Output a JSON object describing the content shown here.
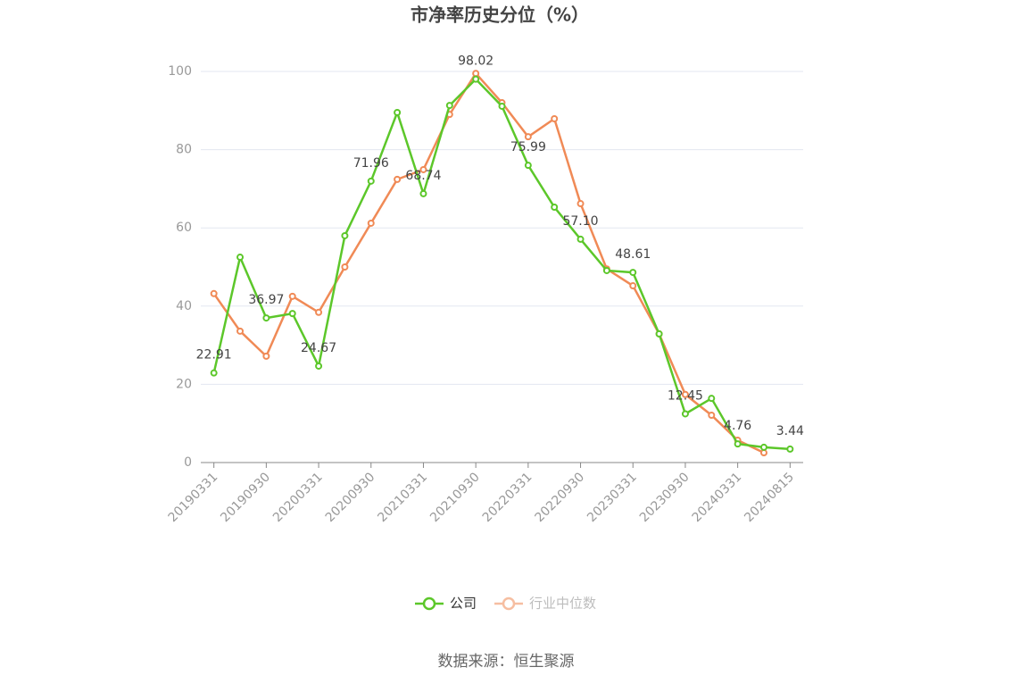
{
  "chart_data": {
    "type": "line",
    "title": "市净率历史分位（%）",
    "categories": [
      "20190331",
      null,
      "20190930",
      null,
      "20200331",
      null,
      "20200930",
      null,
      "20210331",
      null,
      "20210930",
      null,
      "20220331",
      null,
      "20220930",
      null,
      "20230331",
      null,
      "20230930",
      null,
      "20240331",
      null,
      "20240815"
    ],
    "series": [
      {
        "name": "公司",
        "color": "#5cc72a",
        "values": [
          22.91,
          52.5,
          36.97,
          38.1,
          24.67,
          58.0,
          71.96,
          89.5,
          68.74,
          91.3,
          98.02,
          91.1,
          75.99,
          65.3,
          57.1,
          49.1,
          48.61,
          32.9,
          12.45,
          16.4,
          4.76,
          3.9,
          3.44
        ],
        "value_labels": [
          "22.91",
          null,
          "36.97",
          null,
          "24.67",
          null,
          "71.96",
          null,
          "68.74",
          null,
          "98.02",
          null,
          "75.99",
          null,
          "57.10",
          null,
          "48.61",
          null,
          "12.45",
          null,
          "4.76",
          null,
          "3.44"
        ]
      },
      {
        "name": "行业中位数",
        "color": "#f08a56",
        "values": [
          43.2,
          33.6,
          27.2,
          42.5,
          38.4,
          50.0,
          61.2,
          72.4,
          74.9,
          89.0,
          99.5,
          92.0,
          83.3,
          87.9,
          66.2,
          49.5,
          45.2,
          32.9,
          17.4,
          12.1,
          5.7,
          2.5,
          null
        ]
      }
    ],
    "ylim": [
      0,
      100
    ],
    "yticks": [
      0,
      20,
      40,
      60,
      80,
      100
    ],
    "grid": true,
    "legend": "bottom",
    "source": "数据来源：恒生聚源"
  }
}
